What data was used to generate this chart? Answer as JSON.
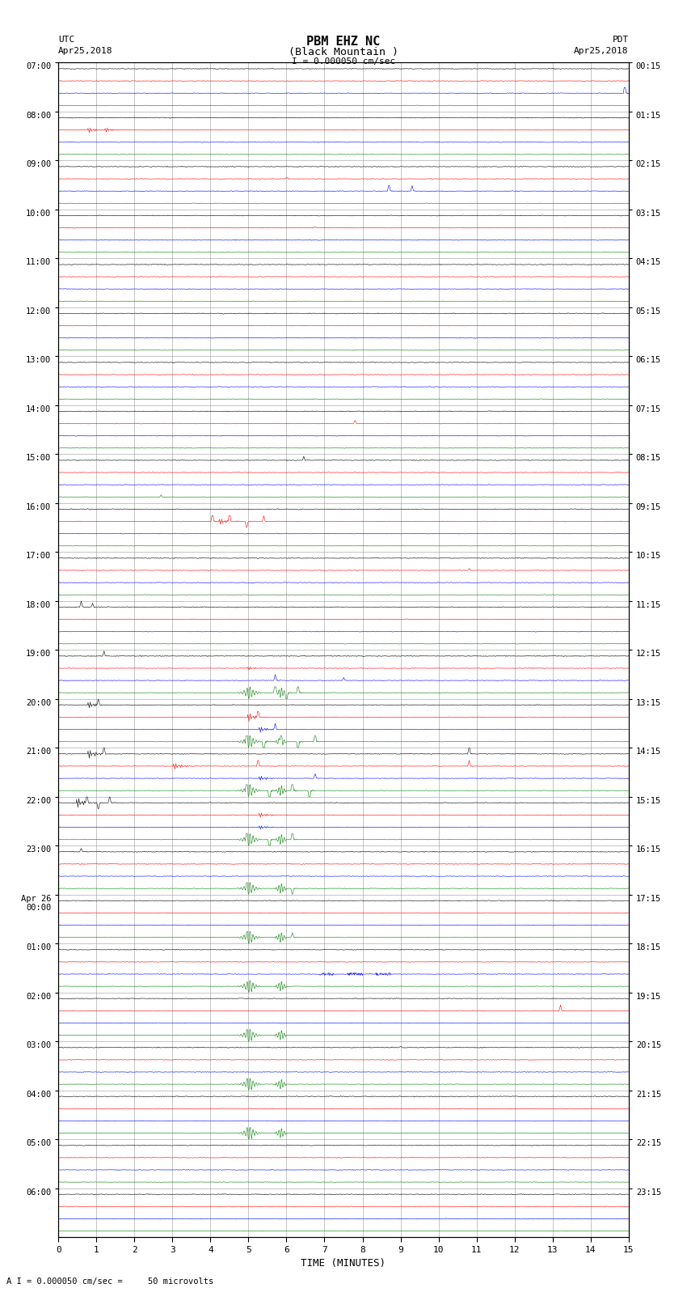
{
  "title_line1": "PBM EHZ NC",
  "title_line2": "(Black Mountain )",
  "scale_label": "I = 0.000050 cm/sec",
  "left_label_top": "UTC",
  "left_label_date": "Apr25,2018",
  "right_label_top": "PDT",
  "right_label_date": "Apr25,2018",
  "bottom_label": "TIME (MINUTES)",
  "bottom_note": "A I = 0.000050 cm/sec =     50 microvolts",
  "utc_times": [
    "07:00",
    "08:00",
    "09:00",
    "10:00",
    "11:00",
    "12:00",
    "13:00",
    "14:00",
    "15:00",
    "16:00",
    "17:00",
    "18:00",
    "19:00",
    "20:00",
    "21:00",
    "22:00",
    "23:00",
    "Apr 26\n00:00",
    "01:00",
    "02:00",
    "03:00",
    "04:00",
    "05:00",
    "06:00"
  ],
  "pdt_times": [
    "00:15",
    "01:15",
    "02:15",
    "03:15",
    "04:15",
    "05:15",
    "06:15",
    "07:15",
    "08:15",
    "09:15",
    "10:15",
    "11:15",
    "12:15",
    "13:15",
    "14:15",
    "15:15",
    "16:15",
    "17:15",
    "18:15",
    "19:15",
    "20:15",
    "21:15",
    "22:15",
    "23:15"
  ],
  "num_rows": 24,
  "traces_per_row": 4,
  "minutes": 15,
  "bg_color": "#ffffff",
  "trace_colors": [
    "black",
    "red",
    "blue",
    "green"
  ],
  "grid_color": "#aaaaaa",
  "fig_width": 8.5,
  "fig_height": 16.13
}
